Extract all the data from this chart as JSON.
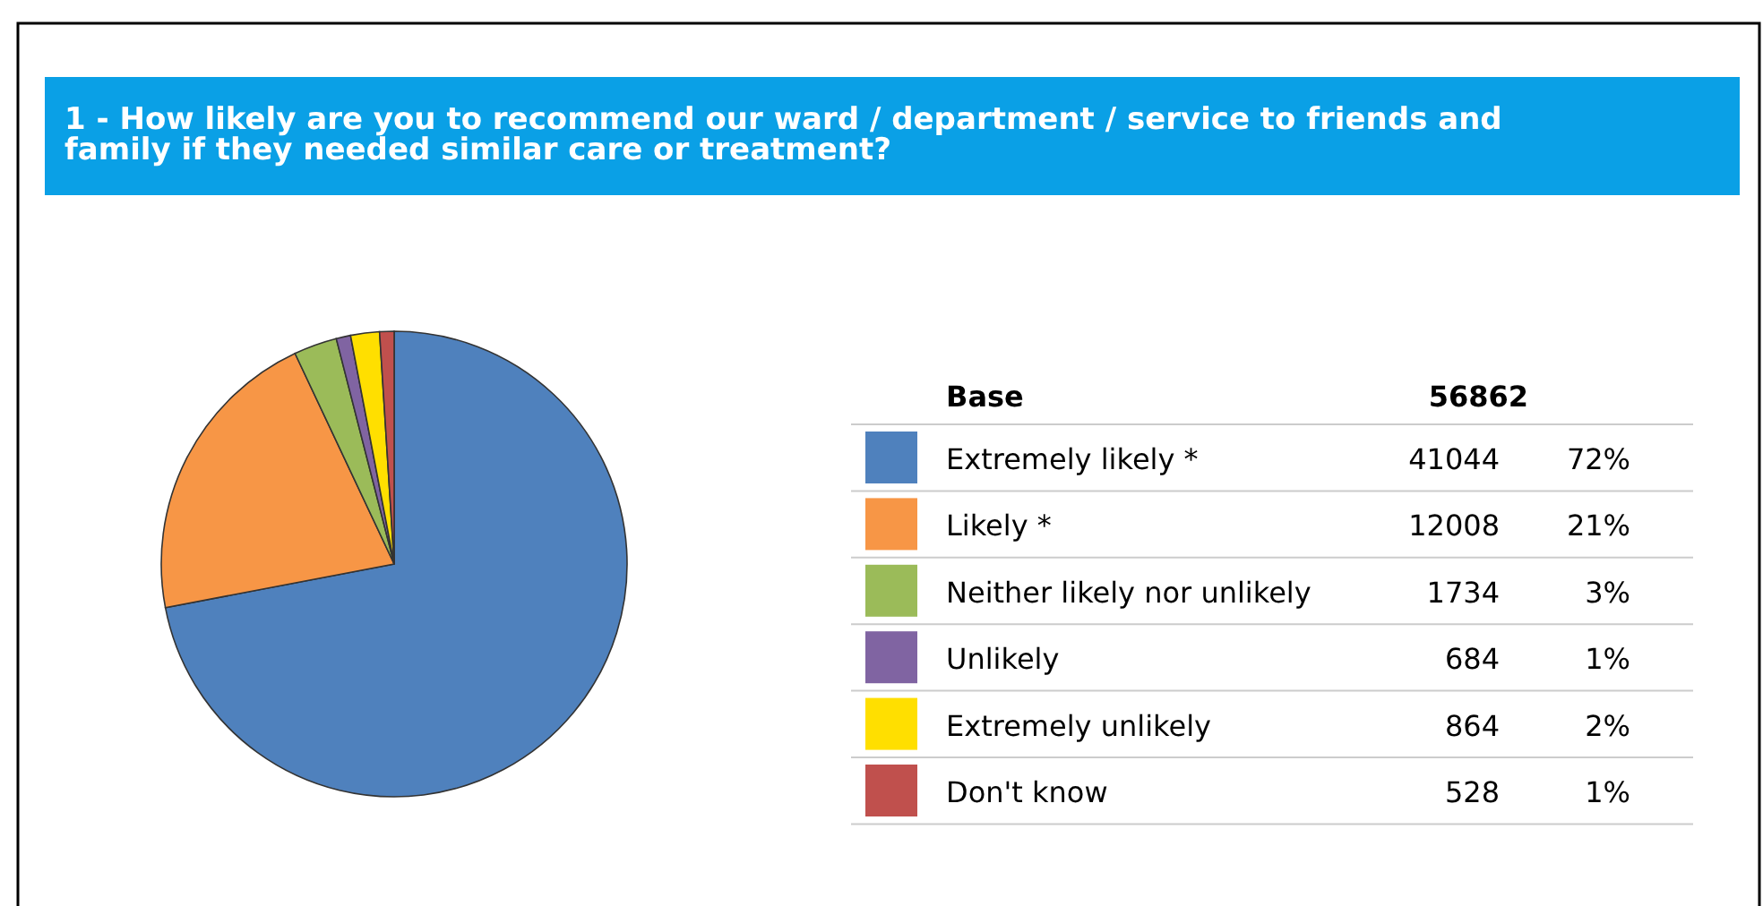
{
  "chart_data": {
    "type": "pie",
    "title": "1 - How likely are you to recommend our ward / department / service to friends and family if they needed similar care or treatment?",
    "categories": [
      "Extremely likely *",
      "Likely *",
      "Neither likely nor unlikely",
      "Unlikely",
      "Extremely unlikely",
      "Don't know"
    ],
    "values": [
      72,
      21,
      3,
      1,
      2,
      1
    ],
    "colors": [
      "#4f81bd",
      "#f79646",
      "#9bbb59",
      "#8064a2",
      "#ffdf00",
      "#c0504d"
    ],
    "value_labels": [
      "72%",
      "21%",
      "3%",
      "1%",
      "2%",
      "1%"
    ],
    "annotations": [
      "Base",
      "56862",
      "41044",
      "12008",
      "1734",
      "684",
      "864",
      "528"
    ],
    "legend": "right"
  }
}
